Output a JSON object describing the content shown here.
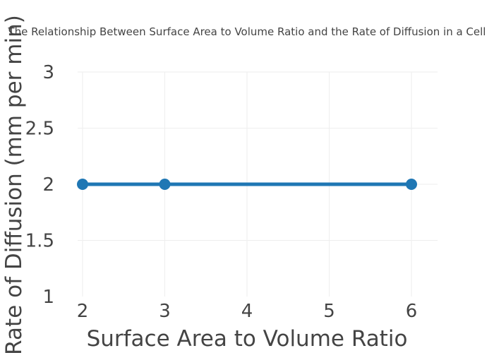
{
  "chart_data": {
    "type": "line",
    "title": "The Relationship Between Surface Area to Volume Ratio and the Rate of Diffusion in a  Cell",
    "xlabel": "Surface Area to Volume Ratio",
    "ylabel": "Rate of Diffusion (mm per min)",
    "x": [
      2,
      3,
      6
    ],
    "series": [
      {
        "values": [
          2,
          2,
          2
        ]
      }
    ],
    "xlim": [
      2,
      6
    ],
    "ylim": [
      1,
      3
    ],
    "xticks": [
      "2",
      "3",
      "4",
      "5",
      "6"
    ],
    "yticks": [
      "1",
      "1.5",
      "2",
      "2.5",
      "3"
    ],
    "xtick_values": [
      2,
      3,
      4,
      5,
      6
    ],
    "ytick_values": [
      1,
      1.5,
      2,
      2.5,
      3
    ],
    "grid": true,
    "line_color": "#1f77b4"
  }
}
